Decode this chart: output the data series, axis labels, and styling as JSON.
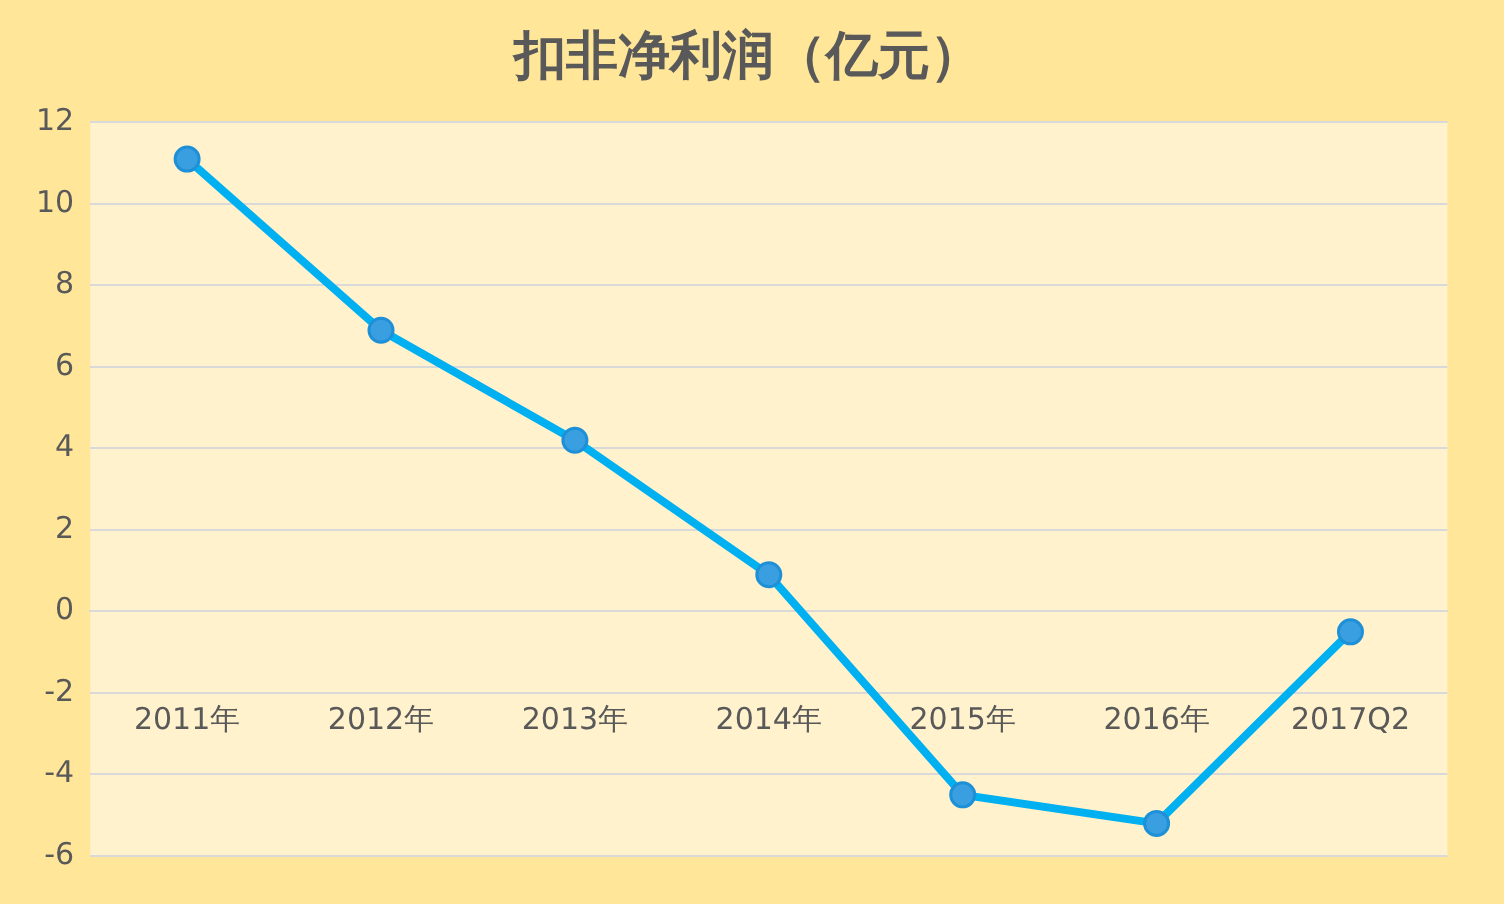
{
  "chart_data": {
    "type": "line",
    "title": "扣非净利润（亿元）",
    "categories": [
      "2011年",
      "2012年",
      "2013年",
      "2014年",
      "2015年",
      "2016年",
      "2017Q2"
    ],
    "series": [
      {
        "color": "#00b0f0",
        "values": [
          11.1,
          6.9,
          4.2,
          0.9,
          -4.5,
          -5.2,
          -0.5
        ]
      }
    ],
    "ylim": [
      -6,
      12
    ],
    "yticks": [
      -6,
      -4,
      -2,
      0,
      2,
      4,
      6,
      8,
      10,
      12
    ],
    "grid": "y",
    "legend": false,
    "marker": "circle",
    "line_style": "solid"
  }
}
